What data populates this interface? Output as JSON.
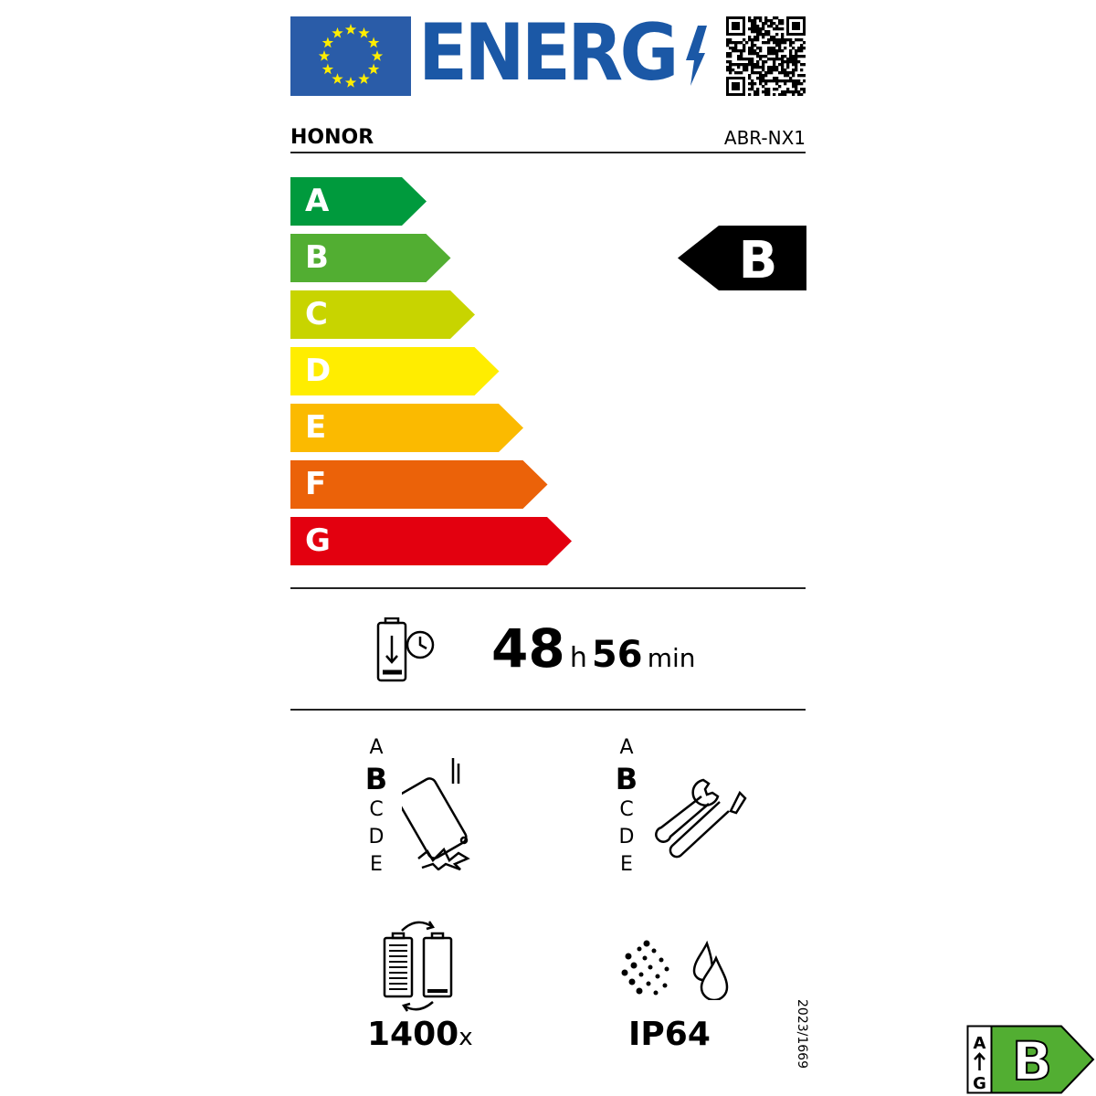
{
  "header": {
    "logo_text": "ENERG",
    "brand": "HONOR",
    "model": "ABR-NX1",
    "flag_color": "#2a5ca8",
    "logo_color": "#1b58a6"
  },
  "scale": {
    "classes": [
      {
        "letter": "A",
        "color": "#009a3d"
      },
      {
        "letter": "B",
        "color": "#52ae32"
      },
      {
        "letter": "C",
        "color": "#c8d400"
      },
      {
        "letter": "D",
        "color": "#ffed00"
      },
      {
        "letter": "E",
        "color": "#fbba00"
      },
      {
        "letter": "F",
        "color": "#eb6209"
      },
      {
        "letter": "G",
        "color": "#e3000f"
      }
    ],
    "rating": "B"
  },
  "battery_endurance": {
    "hours": "48",
    "hours_unit": "h",
    "minutes": "56",
    "minutes_unit": "min"
  },
  "drop_resistance": {
    "letters": [
      "A",
      "B",
      "C",
      "D",
      "E"
    ],
    "selected": "B"
  },
  "repairability": {
    "letters": [
      "A",
      "B",
      "C",
      "D",
      "E"
    ],
    "selected": "B"
  },
  "battery_cycles": {
    "value": "1400",
    "unit": "x"
  },
  "ip_rating": "IP64",
  "regulation": "2023/1669",
  "badge": {
    "top": "A",
    "bottom": "G",
    "rating": "B",
    "color": "#52ae32"
  }
}
